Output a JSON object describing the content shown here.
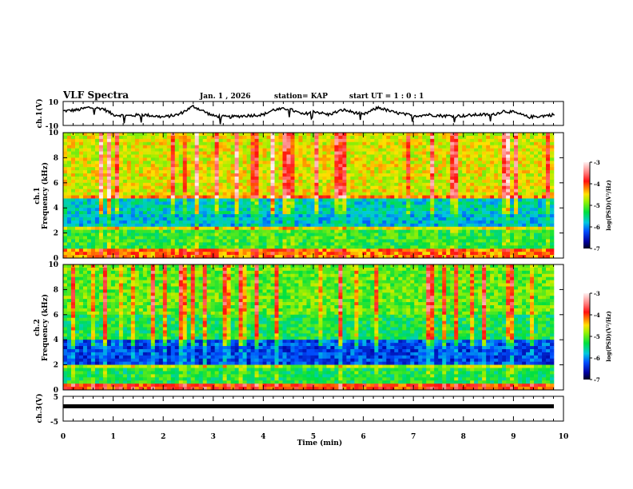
{
  "header": {
    "title": "VLF Spectra",
    "date": "Jan. 1 , 2026",
    "station": "station= KAP",
    "start": "start UT =  1 : 0  : 1"
  },
  "chart_data": [
    {
      "type": "line",
      "name": "ch1-waveform",
      "ylabel": "ch.1(V)",
      "ylim": [
        -10,
        10
      ],
      "yticks": [
        "10",
        "-10"
      ],
      "xlim": [
        0,
        10
      ],
      "series_description_points": [
        [
          0,
          2
        ],
        [
          0.3,
          3
        ],
        [
          0.5,
          5
        ],
        [
          0.8,
          4
        ],
        [
          1,
          -1
        ],
        [
          1.3,
          -2
        ],
        [
          1.6,
          -1
        ],
        [
          2,
          -3
        ],
        [
          2.3,
          -1
        ],
        [
          2.6,
          6
        ],
        [
          2.8,
          2
        ],
        [
          3,
          -2
        ],
        [
          3.3,
          -3
        ],
        [
          3.6,
          -2
        ],
        [
          4,
          -1
        ],
        [
          4.2,
          3
        ],
        [
          4.5,
          4
        ],
        [
          4.8,
          -1
        ],
        [
          5,
          2
        ],
        [
          5.3,
          -1
        ],
        [
          5.6,
          3
        ],
        [
          6,
          -1
        ],
        [
          6.3,
          5
        ],
        [
          6.6,
          1
        ],
        [
          7,
          -2
        ],
        [
          7.3,
          -1
        ],
        [
          7.6,
          -2
        ],
        [
          8,
          -2
        ],
        [
          8.3,
          -1
        ],
        [
          8.6,
          -1
        ],
        [
          8.8,
          2
        ],
        [
          9,
          1
        ],
        [
          9.3,
          -3
        ],
        [
          9.6,
          -2
        ],
        [
          9.8,
          -1
        ]
      ],
      "grid": false
    },
    {
      "type": "heatmap",
      "name": "ch1-spectrogram",
      "ylabel_top": "ch.1",
      "ylabel": "Frequency (kHz)",
      "ylim": [
        0,
        10
      ],
      "yticks": [
        "0",
        "2",
        "4",
        "6",
        "8",
        "10"
      ],
      "xlim": [
        0,
        10
      ],
      "colorbar": {
        "label": "log(PSD)(V²/Hz)",
        "range": [
          -7,
          -3
        ],
        "ticks": [
          "-3",
          "-4",
          "-5",
          "-6",
          "-7"
        ]
      }
    },
    {
      "type": "heatmap",
      "name": "ch2-spectrogram",
      "ylabel_top": "ch.2",
      "ylabel": "Frequency (kHz)",
      "ylim": [
        0,
        10
      ],
      "yticks": [
        "0",
        "2",
        "4",
        "6",
        "8",
        "10"
      ],
      "xlim": [
        0,
        10
      ],
      "colorbar": {
        "label": "log(PSD)(V²/Hz)",
        "range": [
          -7,
          -3
        ],
        "ticks": [
          "-3",
          "-4",
          "-5",
          "-6",
          "-7"
        ]
      }
    },
    {
      "type": "line",
      "name": "ch3-waveform",
      "ylabel": "ch.3(V)",
      "ylim": [
        -5,
        5
      ],
      "yticks": [
        "5",
        "-5"
      ],
      "xlim": [
        0,
        10
      ],
      "level": 1,
      "xlabel": "Time (min)",
      "xticks": [
        "0",
        "1",
        "2",
        "3",
        "4",
        "5",
        "6",
        "7",
        "8",
        "9",
        "10"
      ]
    }
  ]
}
